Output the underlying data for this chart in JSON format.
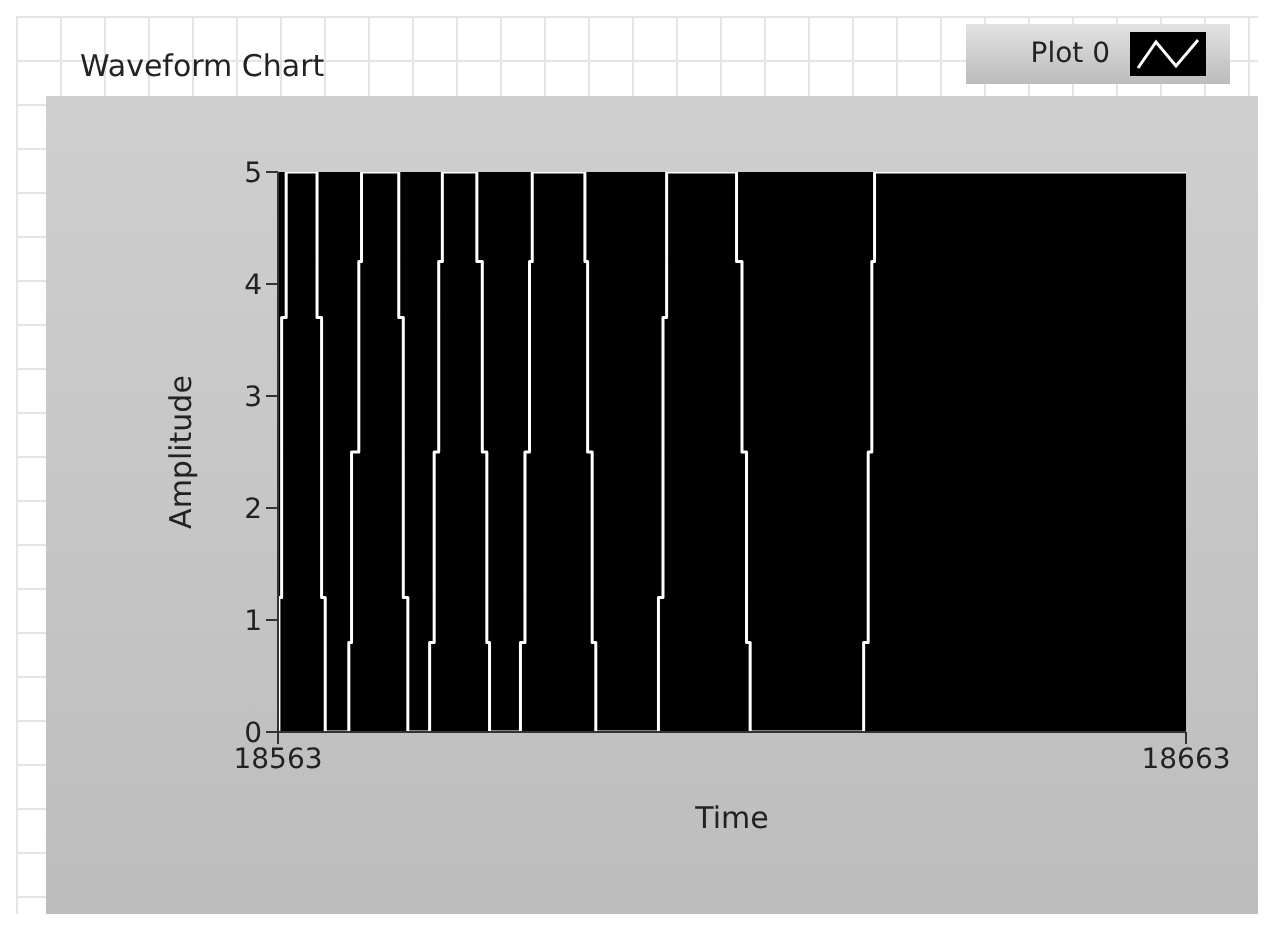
{
  "chart_data": {
    "type": "step",
    "title": "Waveform Chart",
    "xlabel": "Time",
    "ylabel": "Amplitude",
    "x": [
      18563,
      18563.1,
      18563.4,
      18563.9,
      18567.3,
      18567.8,
      18568.2,
      18570.8,
      18571.1,
      18571.9,
      18572.2,
      18576.3,
      18576.8,
      18577.3,
      18579.7,
      18580.2,
      18580.7,
      18581.1,
      18584.9,
      18585.5,
      18586.0,
      18586.3,
      18589.7,
      18590.2,
      18590.7,
      18591.0,
      18596.8,
      18597.1,
      18597.6,
      18598.0,
      18604.9,
      18605.4,
      18605.8,
      18613.5,
      18614.1,
      18614.6,
      18615.0,
      18627.5,
      18628.0,
      18628.4,
      18628.7,
      18663
    ],
    "series": [
      {
        "name": "Plot 0",
        "color": "#ffffff",
        "values": [
          0,
          1.2,
          3.7,
          5,
          3.7,
          1.2,
          0,
          0.8,
          2.5,
          4.2,
          5,
          3.7,
          1.2,
          0,
          0.8,
          2.5,
          4.2,
          5,
          4.2,
          2.5,
          0.8,
          0,
          0.8,
          2.5,
          4.2,
          5,
          4.2,
          2.5,
          0.8,
          0,
          1.2,
          3.7,
          5,
          4.2,
          2.5,
          0.8,
          0,
          0.8,
          2.5,
          4.2,
          5,
          5
        ]
      }
    ],
    "line_style": "solid",
    "marker": "none",
    "grid": false,
    "legend": "top right",
    "xlim": [
      18563,
      18663
    ],
    "xticks": [
      18563,
      18663
    ],
    "ylim": [
      0,
      5
    ],
    "yticks": [
      0,
      1,
      2,
      3,
      4,
      5
    ]
  }
}
